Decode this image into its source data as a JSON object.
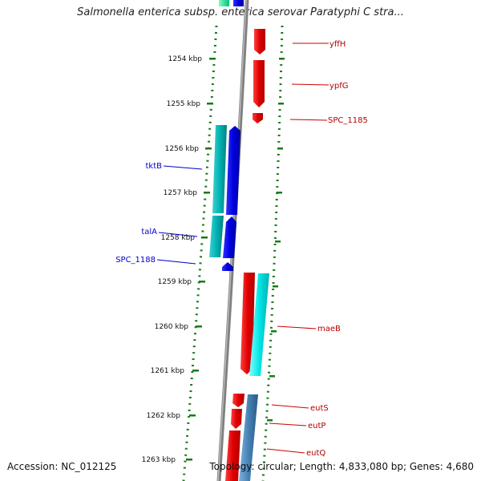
{
  "title": "Salmonella enterica subsp. enterica serovar Paratyphi C stra...",
  "footer": {
    "accession": "Accession: NC_012125",
    "topology": "Topology: circular; Length: 4,833,080 bp; Genes: 4,680"
  },
  "colors": {
    "backbone": "#808080",
    "tick": "#1a7a1a",
    "forward_gene": "#ff1a1a",
    "reverse_gene": "#0000ff",
    "forward_cds": "#00e6e6",
    "reverse_cds": "#00b3b3",
    "blue_cds": "#4682b4",
    "label_right": "#b30000",
    "label_left": "#0000cc"
  },
  "ticks": [
    "1254 kbp",
    "1255 kbp",
    "1256 kbp",
    "1257 kbp",
    "1258 kbp",
    "1259 kbp",
    "1260 kbp",
    "1261 kbp",
    "1262 kbp",
    "1263 kbp"
  ],
  "genes": [
    {
      "name": "yffH",
      "strand": "forward",
      "color": "red"
    },
    {
      "name": "ypfG",
      "strand": "forward",
      "color": "red"
    },
    {
      "name": "SPC_1185",
      "strand": "forward",
      "color": "red"
    },
    {
      "name": "tktB",
      "strand": "reverse",
      "color": "blue"
    },
    {
      "name": "talA",
      "strand": "reverse",
      "color": "blue"
    },
    {
      "name": "SPC_1188",
      "strand": "reverse",
      "color": "blue"
    },
    {
      "name": "maeB",
      "strand": "forward",
      "color": "red"
    },
    {
      "name": "eutS",
      "strand": "forward",
      "color": "red"
    },
    {
      "name": "eutP",
      "strand": "forward",
      "color": "red"
    },
    {
      "name": "eutQ",
      "strand": "forward",
      "color": "red"
    }
  ]
}
